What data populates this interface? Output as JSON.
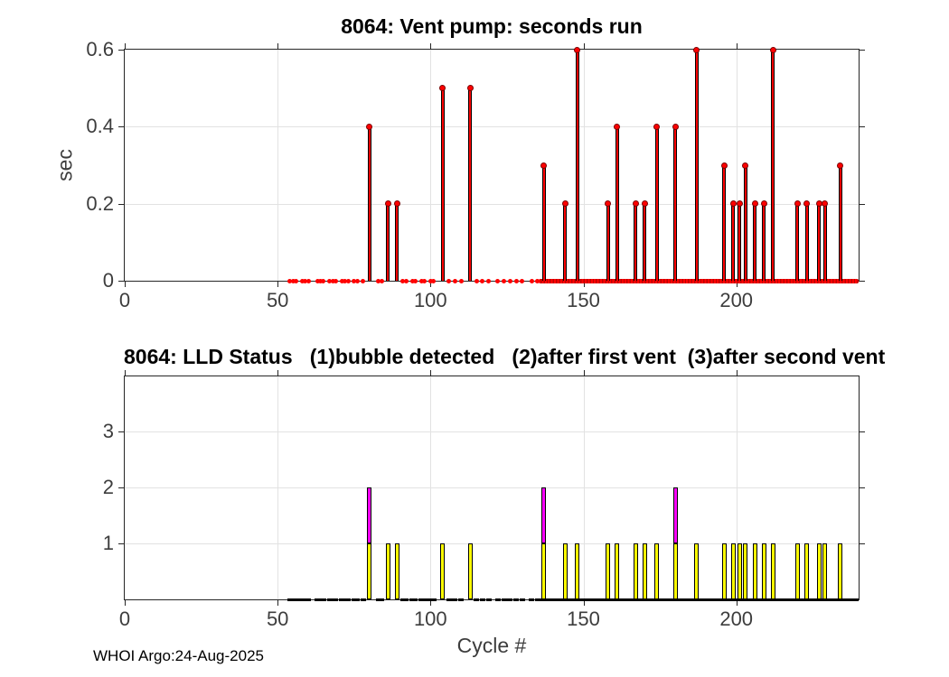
{
  "figure": {
    "footer": "WHOI Argo:24-Aug-2025"
  },
  "chart_data": [
    {
      "type": "stem",
      "title": "8064: Vent pump: seconds run",
      "xlabel": "",
      "ylabel": "sec",
      "xlim": [
        0,
        240
      ],
      "ylim": [
        0,
        0.6
      ],
      "grid": "on",
      "xticks": [
        0,
        50,
        100,
        150,
        200
      ],
      "xtick_labels": [
        "0",
        "50",
        "100",
        "150",
        "200"
      ],
      "yticks": [
        0,
        0.2,
        0.4,
        0.6
      ],
      "ytick_labels": [
        "0",
        "0.2",
        "0.4",
        "0.6"
      ],
      "x": [
        80,
        86,
        89,
        104,
        113,
        137,
        144,
        148,
        158,
        161,
        167,
        170,
        174,
        180,
        187,
        196,
        199,
        201,
        203,
        206,
        209,
        212,
        220,
        223,
        227,
        229,
        234
      ],
      "y": [
        0.4,
        0.2,
        0.2,
        0.5,
        0.5,
        0.3,
        0.2,
        0.6,
        0.2,
        0.4,
        0.2,
        0.2,
        0.4,
        0.4,
        0.6,
        0.3,
        0.2,
        0.2,
        0.3,
        0.2,
        0.2,
        0.6,
        0.2,
        0.2,
        0.2,
        0.2,
        0.3
      ],
      "zero_cycles_sparse": [
        54,
        55,
        56,
        58,
        59,
        60,
        63,
        64,
        65,
        67,
        68,
        69,
        71,
        72,
        73,
        75,
        76,
        78,
        83,
        84,
        91,
        92,
        94,
        95,
        97,
        98,
        100,
        101,
        106,
        108,
        110,
        115,
        117,
        119,
        122,
        124,
        126,
        128,
        130,
        133,
        135
      ],
      "zero_cycles_dense_range": [
        136,
        240
      ],
      "colors": {
        "stem_fill": "#ff0000",
        "stem_edge": "#000000",
        "marker_fill": "#ff0000",
        "grid": "#e2e2e2",
        "axis": "#262626"
      }
    },
    {
      "type": "bar",
      "title": "8064: LLD Status   (1)bubble detected   (2)after first vent  (3)after second vent",
      "xlabel": "Cycle #",
      "ylabel": "",
      "xlim": [
        0,
        240
      ],
      "ylim": [
        0,
        4
      ],
      "grid": "on",
      "xticks": [
        0,
        50,
        100,
        150,
        200
      ],
      "xtick_labels": [
        "0",
        "50",
        "100",
        "150",
        "200"
      ],
      "yticks": [
        1,
        2,
        3
      ],
      "ytick_labels": [
        "1",
        "2",
        "3"
      ],
      "status_legend": {
        "1": "bubble detected",
        "2": "after first vent",
        "3": "after second vent"
      },
      "x": [
        80,
        86,
        89,
        104,
        113,
        137,
        144,
        148,
        158,
        161,
        167,
        170,
        174,
        180,
        187,
        196,
        199,
        201,
        203,
        206,
        209,
        212,
        220,
        223,
        227,
        229,
        234
      ],
      "status": [
        2,
        1,
        1,
        1,
        1,
        2,
        1,
        1,
        1,
        1,
        1,
        1,
        1,
        2,
        1,
        1,
        1,
        1,
        1,
        1,
        1,
        1,
        1,
        1,
        1,
        1,
        1
      ],
      "zero_cycles_sparse": [
        54,
        55,
        56,
        58,
        59,
        60,
        63,
        64,
        65,
        67,
        68,
        69,
        71,
        72,
        73,
        75,
        76,
        78,
        83,
        84,
        91,
        92,
        94,
        95,
        97,
        98,
        100,
        101,
        106,
        108,
        110,
        115,
        117,
        119,
        122,
        124,
        126,
        128,
        130,
        133,
        135
      ],
      "zero_cycles_dense_range": [
        136,
        240
      ],
      "colors": {
        "status1_fill": "#ffff00",
        "status2_fill": "#ff00ff",
        "bar_edge": "#000000",
        "zero_marker": "#000000",
        "grid": "#e2e2e2",
        "axis": "#262626"
      }
    }
  ]
}
